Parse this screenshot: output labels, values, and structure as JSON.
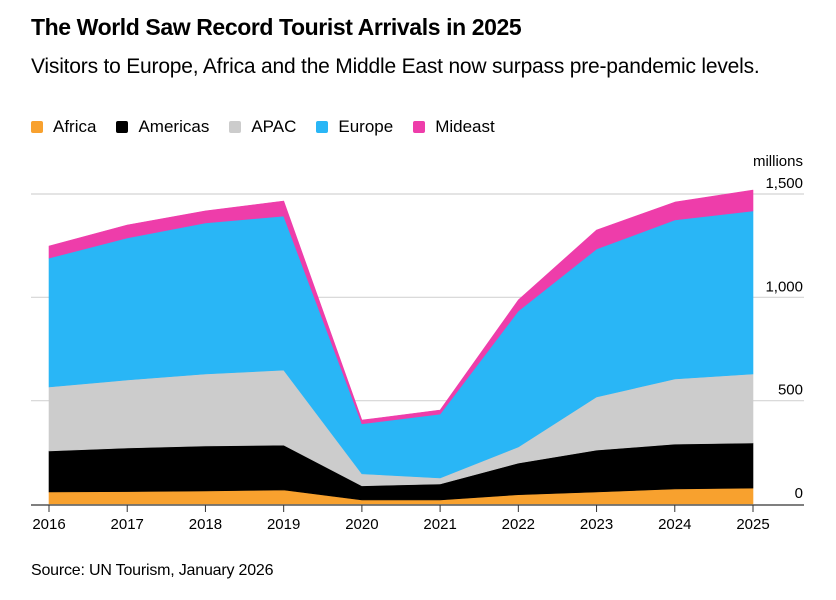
{
  "header": {
    "title": "The World Saw Record Tourist Arrivals in 2025",
    "subtitle": "Visitors to Europe, Africa and the Middle East now surpass pre-pandemic levels."
  },
  "footer": {
    "source": "Source: UN Tourism, January 2026"
  },
  "chart_data": {
    "type": "area",
    "stacked": true,
    "title": "The World Saw Record Tourist Arrivals in 2025",
    "subtitle": "Visitors to Europe, Africa and the Middle East now surpass pre-pandemic levels.",
    "xlabel": "",
    "ylabel": "millions",
    "x": [
      "2016",
      "2017",
      "2018",
      "2019",
      "2020",
      "2021",
      "2022",
      "2023",
      "2024",
      "2025"
    ],
    "ylim": [
      0,
      1500
    ],
    "yticks": [
      0,
      500,
      1000,
      1500
    ],
    "ytick_labels": [
      "0",
      "500",
      "1,000",
      "1,500"
    ],
    "grid": true,
    "legend_position": "top-left",
    "series": [
      {
        "name": "Africa",
        "color": "#F8A12E",
        "values": [
          58,
          60,
          63,
          68,
          20,
          20,
          45,
          58,
          73,
          77
        ]
      },
      {
        "name": "Americas",
        "color": "#000000",
        "values": [
          199,
          211,
          218,
          217,
          68,
          77,
          153,
          203,
          217,
          218
        ]
      },
      {
        "name": "APAC",
        "color": "#CCCCCC",
        "values": [
          309,
          329,
          348,
          363,
          58,
          29,
          78,
          257,
          315,
          334
        ]
      },
      {
        "name": "Europe",
        "color": "#29B6F6",
        "values": [
          624,
          687,
          731,
          745,
          242,
          309,
          658,
          716,
          769,
          789
        ]
      },
      {
        "name": "Mideast",
        "color": "#EE3DAA",
        "values": [
          58,
          63,
          58,
          73,
          18,
          20,
          53,
          92,
          87,
          101
        ]
      }
    ]
  }
}
